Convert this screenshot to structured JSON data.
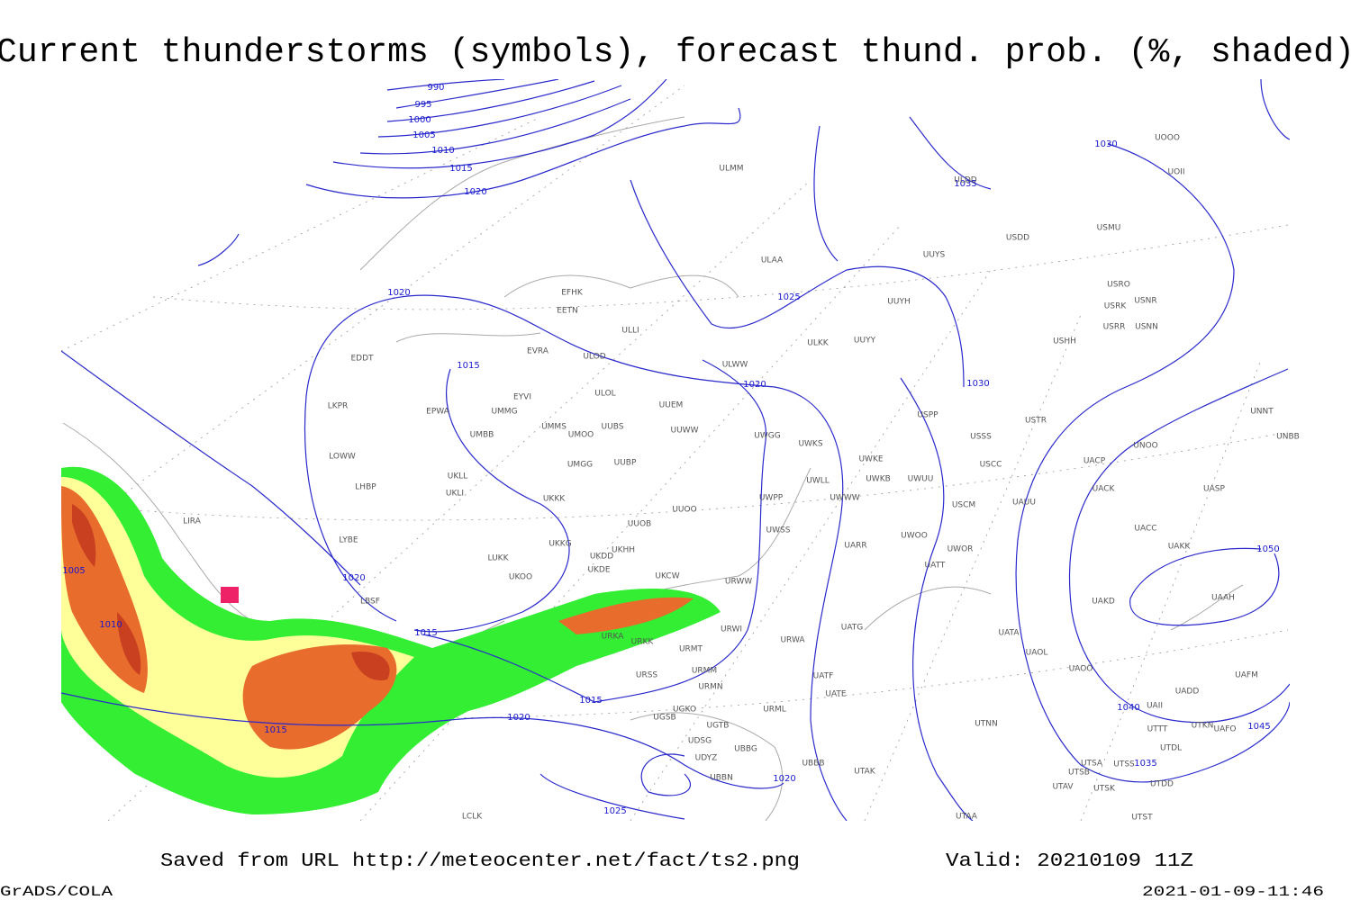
{
  "header": {
    "title": "Current thunderstorms (symbols), forecast thund. prob. (%, shaded)"
  },
  "isobar_labels": [
    "990",
    "995",
    "1000",
    "1005",
    "1010",
    "1015",
    "1020",
    "1020",
    "1015",
    "1020",
    "1025",
    "1030",
    "1035",
    "1030",
    "1020",
    "1015",
    "1005",
    "1010",
    "1015",
    "1020",
    "1015",
    "1020",
    "1025",
    "1040",
    "1045",
    "1050",
    "1035"
  ],
  "stations": [
    "EFHK",
    "EETN",
    "EVRA",
    "ULOD",
    "ULLI",
    "ULAA",
    "ULMM",
    "UUYS",
    "UUYH",
    "ULKK",
    "UUYY",
    "ULWW",
    "EDDT",
    "EPWA",
    "EYVI",
    "UMMG",
    "UMBB",
    "ULOL",
    "UUEM",
    "UMMS",
    "UMOO",
    "UUBS",
    "UUWW",
    "UWGG",
    "UWKS",
    "UWKE",
    "UWKB",
    "UWUU",
    "UUBP",
    "UMGG",
    "UKLL",
    "UKLI",
    "LKPR",
    "LOWW",
    "LHBP",
    "LIRA",
    "LYBE",
    "UKKK",
    "UUOO",
    "UUOB",
    "UWPP",
    "UWWW",
    "UWLL",
    "UWSS",
    "UARR",
    "UWOO",
    "UWOR",
    "UATT",
    "USCM",
    "UAUU",
    "USCC",
    "USSS",
    "USPP",
    "USTR",
    "UKKG",
    "UKDD",
    "UKHH",
    "LUKK",
    "UKOO",
    "UKDE",
    "UKCW",
    "URWW",
    "LBSF",
    "URWI",
    "UATG",
    "URWA",
    "UATA",
    "UAOL",
    "UAOO",
    "UAKD",
    "UACC",
    "UAKK",
    "UAAH",
    "UAFM",
    "UADD",
    "UACP",
    "UACK",
    "UASP",
    "UNOO",
    "UNNT",
    "UNBB",
    "USHH",
    "USRR",
    "USNN",
    "USRK",
    "USNR",
    "USRO",
    "USMU",
    "USDD",
    "UOOO",
    "UOII",
    "ULDD",
    "URKK",
    "URKA",
    "URSS",
    "URMT",
    "URMM",
    "URMN",
    "URML",
    "UATE",
    "UATF",
    "UGKO",
    "UGSB",
    "UGTB",
    "UDSG",
    "UDYZ",
    "UBBG",
    "UBBB",
    "UBBN",
    "UTAK",
    "UTNN",
    "UTSA",
    "UTSB",
    "UTSS",
    "UTAV",
    "UTSK",
    "UTTT",
    "UTKN",
    "UAFO",
    "UTDL",
    "UTDD",
    "UTAA",
    "UTST",
    "UAII",
    "LCLK"
  ],
  "footer": {
    "source": "Saved from URL http://meteocenter.net/fact/ts2.png",
    "valid": "Valid: 20210109 11Z",
    "software": "GrADS/COLA",
    "timestamp": "2021-01-09-11:46"
  }
}
